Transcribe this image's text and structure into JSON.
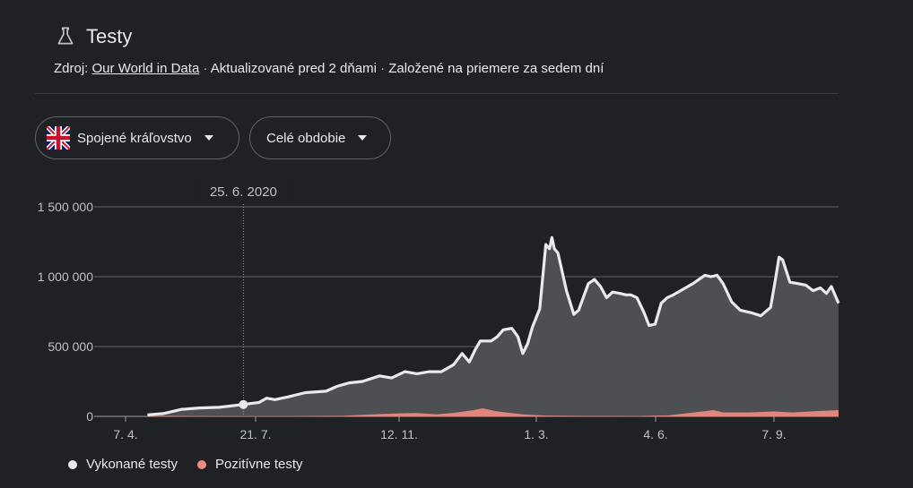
{
  "header": {
    "title": "Testy",
    "source_prefix": "Zdroj:",
    "source_link": "Our World in Data",
    "sep1": "·",
    "updated": "Aktualizované pred 2 dňami",
    "sep2": "·",
    "basis": "Založené na priemere za sedem dní"
  },
  "filters": {
    "country": "Spojené kráľovstvo",
    "period": "Celé obdobie"
  },
  "tooltip": {
    "date": "25. 6. 2020"
  },
  "legend": {
    "tests_label": "Vykonané testy",
    "positive_label": "Pozitívne testy"
  },
  "colors": {
    "tests_line": "#e8eaed",
    "tests_fill": "#4e4f53",
    "positive": "#f28b82",
    "grid": "#5f6368",
    "background": "#202124"
  },
  "chart_data": {
    "type": "area",
    "x_start": "2020-03-20",
    "x_end": "2021-10-28",
    "x_ticks": [
      "7. 4.",
      "21. 7.",
      "12. 11.",
      "1. 3.",
      "4. 6.",
      "7. 9."
    ],
    "y_ticks": [
      "0",
      "500 000",
      "1 000 000",
      "1 500 000"
    ],
    "ylim": [
      0,
      1500000
    ],
    "highlight": {
      "label": "25. 6. 2020"
    },
    "series": [
      {
        "name": "Vykonané testy",
        "points": [
          [
            "2020-04-07",
            10000
          ],
          [
            "2020-04-20",
            20000
          ],
          [
            "2020-05-05",
            50000
          ],
          [
            "2020-05-20",
            60000
          ],
          [
            "2020-06-05",
            65000
          ],
          [
            "2020-06-25",
            85000
          ],
          [
            "2020-07-08",
            100000
          ],
          [
            "2020-07-14",
            130000
          ],
          [
            "2020-07-21",
            120000
          ],
          [
            "2020-08-01",
            140000
          ],
          [
            "2020-08-15",
            170000
          ],
          [
            "2020-09-01",
            180000
          ],
          [
            "2020-09-10",
            215000
          ],
          [
            "2020-09-20",
            240000
          ],
          [
            "2020-10-01",
            250000
          ],
          [
            "2020-10-15",
            290000
          ],
          [
            "2020-10-25",
            275000
          ],
          [
            "2020-11-05",
            320000
          ],
          [
            "2020-11-15",
            305000
          ],
          [
            "2020-11-25",
            320000
          ],
          [
            "2020-12-05",
            320000
          ],
          [
            "2020-12-15",
            370000
          ],
          [
            "2020-12-22",
            450000
          ],
          [
            "2020-12-28",
            390000
          ],
          [
            "2021-01-02",
            480000
          ],
          [
            "2021-01-06",
            540000
          ],
          [
            "2021-01-15",
            540000
          ],
          [
            "2021-01-20",
            570000
          ],
          [
            "2021-01-25",
            620000
          ],
          [
            "2021-02-01",
            630000
          ],
          [
            "2021-02-06",
            570000
          ],
          [
            "2021-02-10",
            450000
          ],
          [
            "2021-02-14",
            520000
          ],
          [
            "2021-02-18",
            640000
          ],
          [
            "2021-02-24",
            770000
          ],
          [
            "2021-03-01",
            1230000
          ],
          [
            "2021-03-04",
            1200000
          ],
          [
            "2021-03-06",
            1280000
          ],
          [
            "2021-03-08",
            1200000
          ],
          [
            "2021-03-11",
            1170000
          ],
          [
            "2021-03-18",
            900000
          ],
          [
            "2021-03-24",
            730000
          ],
          [
            "2021-03-28",
            760000
          ],
          [
            "2021-04-05",
            950000
          ],
          [
            "2021-04-10",
            980000
          ],
          [
            "2021-04-15",
            930000
          ],
          [
            "2021-04-20",
            850000
          ],
          [
            "2021-04-25",
            890000
          ],
          [
            "2021-05-01",
            880000
          ],
          [
            "2021-05-06",
            870000
          ],
          [
            "2021-05-10",
            870000
          ],
          [
            "2021-05-15",
            850000
          ],
          [
            "2021-05-21",
            740000
          ],
          [
            "2021-05-25",
            650000
          ],
          [
            "2021-05-30",
            660000
          ],
          [
            "2021-06-04",
            810000
          ],
          [
            "2021-06-09",
            850000
          ],
          [
            "2021-06-14",
            870000
          ],
          [
            "2021-06-20",
            900000
          ],
          [
            "2021-06-30",
            950000
          ],
          [
            "2021-07-05",
            980000
          ],
          [
            "2021-07-10",
            1010000
          ],
          [
            "2021-07-15",
            1000000
          ],
          [
            "2021-07-20",
            1010000
          ],
          [
            "2021-07-25",
            950000
          ],
          [
            "2021-08-01",
            820000
          ],
          [
            "2021-08-08",
            760000
          ],
          [
            "2021-08-18",
            740000
          ],
          [
            "2021-08-25",
            720000
          ],
          [
            "2021-09-02",
            780000
          ],
          [
            "2021-09-06",
            980000
          ],
          [
            "2021-09-09",
            1140000
          ],
          [
            "2021-09-12",
            1120000
          ],
          [
            "2021-09-18",
            960000
          ],
          [
            "2021-09-25",
            950000
          ],
          [
            "2021-10-01",
            940000
          ],
          [
            "2021-10-07",
            900000
          ],
          [
            "2021-10-13",
            920000
          ],
          [
            "2021-10-18",
            880000
          ],
          [
            "2021-10-22",
            930000
          ],
          [
            "2021-10-28",
            810000
          ]
        ]
      },
      {
        "name": "Pozitívne testy",
        "points": [
          [
            "2020-04-07",
            4000
          ],
          [
            "2020-06-01",
            2000
          ],
          [
            "2020-08-01",
            1000
          ],
          [
            "2020-09-15",
            4000
          ],
          [
            "2020-10-10",
            15000
          ],
          [
            "2020-11-01",
            22000
          ],
          [
            "2020-11-15",
            24000
          ],
          [
            "2020-12-01",
            15000
          ],
          [
            "2020-12-15",
            25000
          ],
          [
            "2021-01-01",
            45000
          ],
          [
            "2021-01-08",
            58000
          ],
          [
            "2021-01-20",
            35000
          ],
          [
            "2021-02-10",
            14000
          ],
          [
            "2021-03-01",
            6000
          ],
          [
            "2021-04-01",
            3000
          ],
          [
            "2021-05-15",
            2500
          ],
          [
            "2021-06-10",
            7000
          ],
          [
            "2021-07-01",
            28000
          ],
          [
            "2021-07-17",
            45000
          ],
          [
            "2021-07-25",
            28000
          ],
          [
            "2021-08-15",
            28000
          ],
          [
            "2021-09-05",
            35000
          ],
          [
            "2021-09-20",
            28000
          ],
          [
            "2021-10-10",
            38000
          ],
          [
            "2021-10-28",
            45000
          ]
        ]
      }
    ]
  }
}
